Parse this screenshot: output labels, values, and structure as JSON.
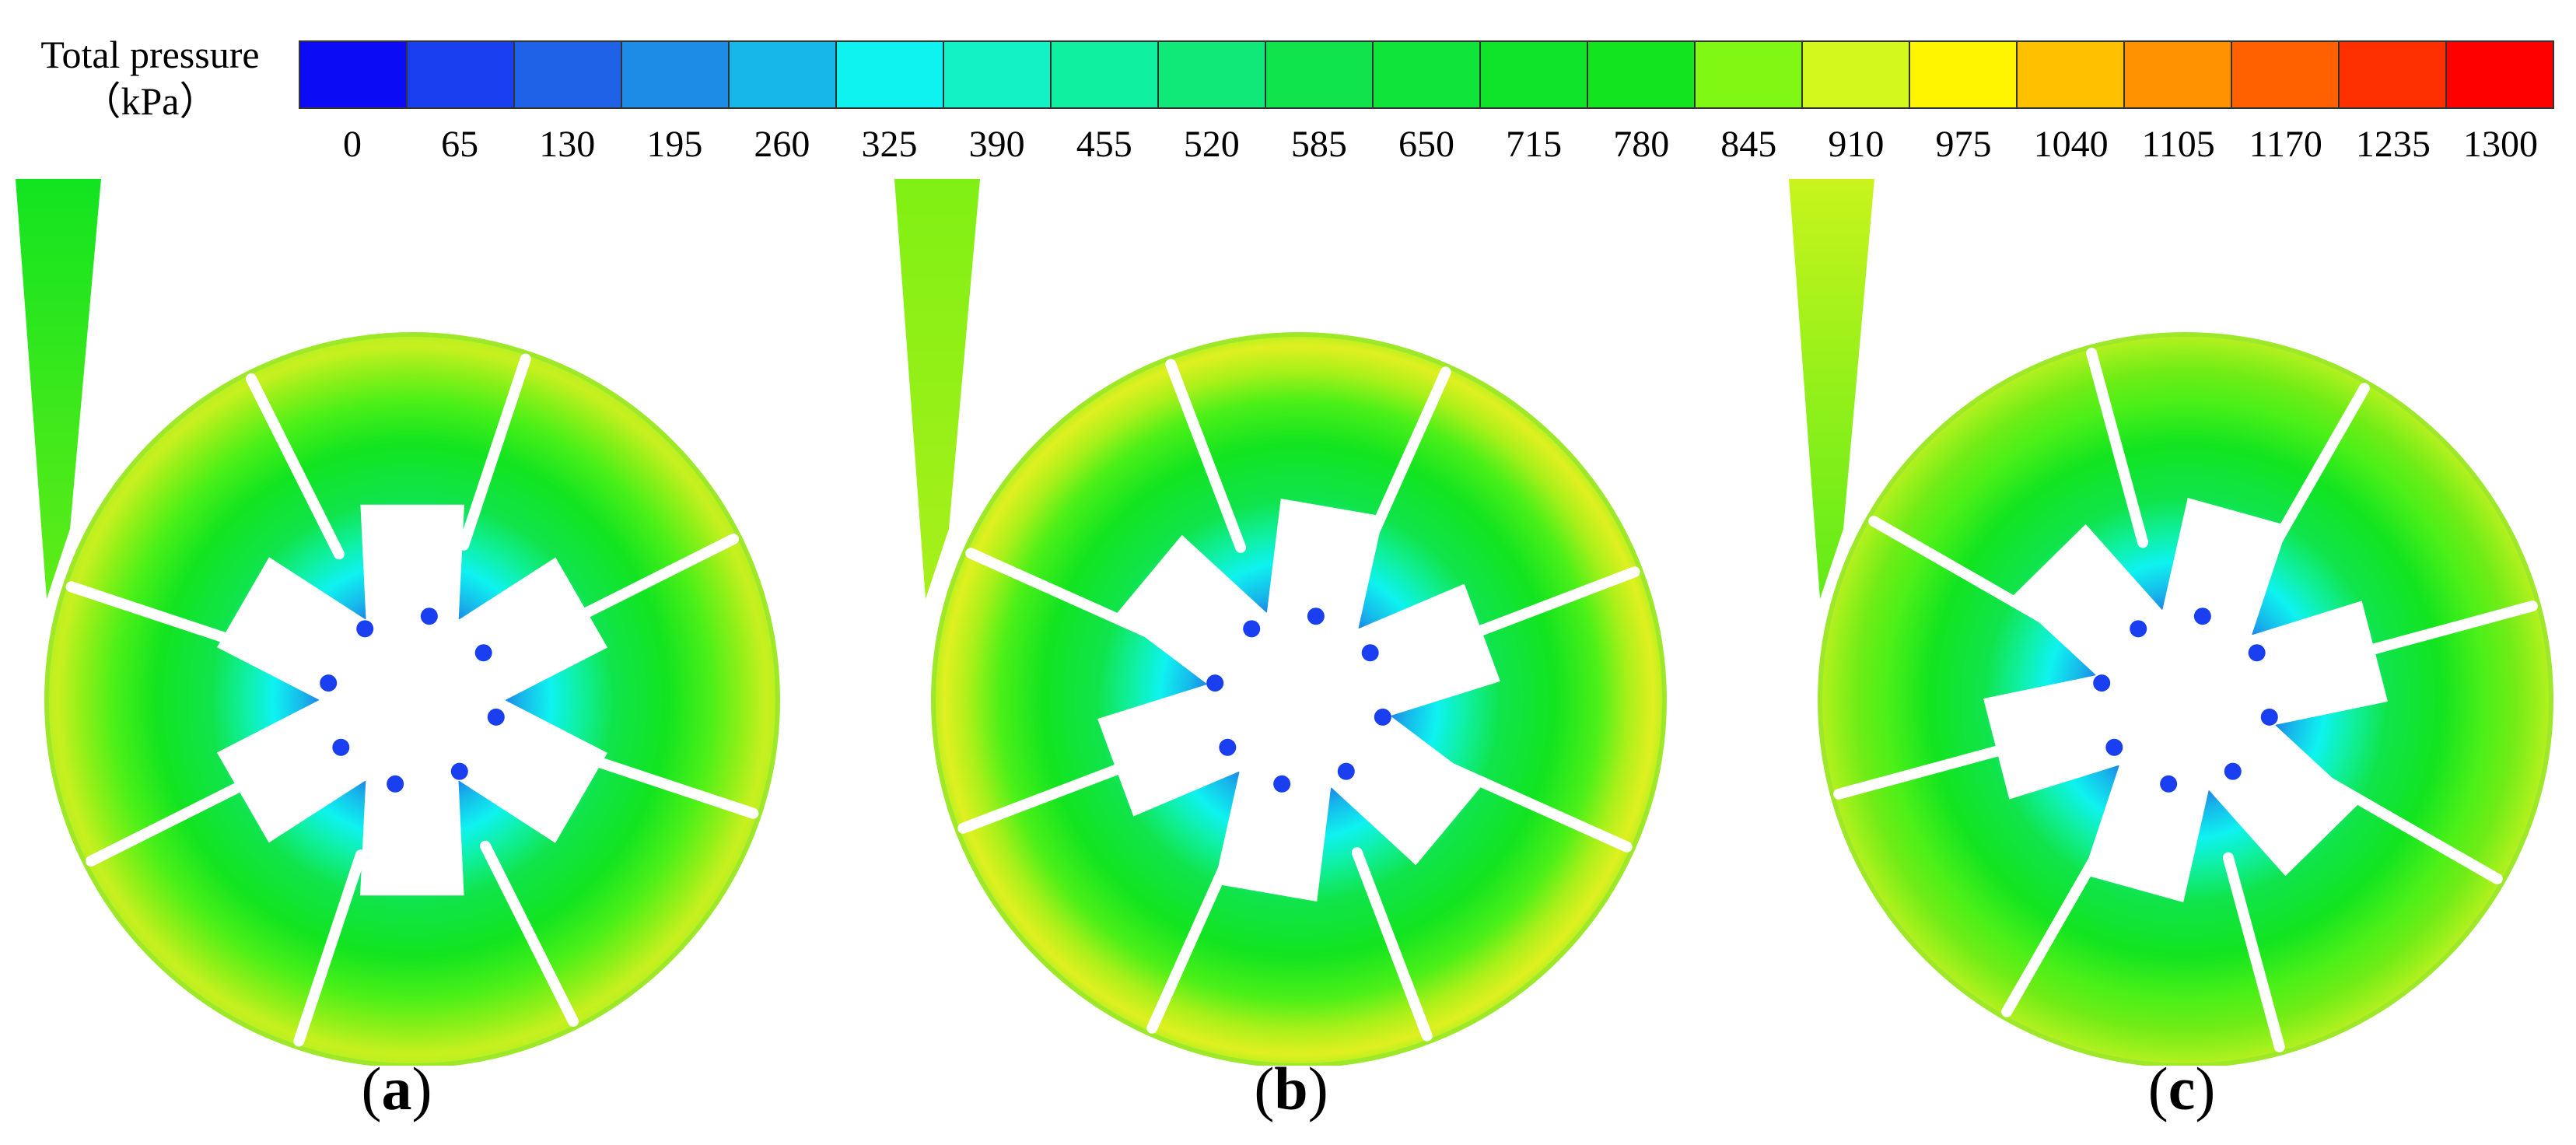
{
  "legend": {
    "title_line1": "Total pressure",
    "title_line2": "（kPa）",
    "ticks": [
      "0",
      "65",
      "130",
      "195",
      "260",
      "325",
      "390",
      "455",
      "520",
      "585",
      "650",
      "715",
      "780",
      "845",
      "910",
      "975",
      "1040",
      "1105",
      "1170",
      "1235",
      "1300"
    ],
    "colors": [
      "#0b0bf5",
      "#1a3ff0",
      "#1f62e8",
      "#1d8ce6",
      "#17b7ea",
      "#0ef2f0",
      "#12f2c4",
      "#0ff0a0",
      "#10e878",
      "#10e44c",
      "#0fe43a",
      "#10e42a",
      "#12e420",
      "#80f814",
      "#d2f81c",
      "#fff500",
      "#ffc000",
      "#ff9200",
      "#ff6000",
      "#ff3000",
      "#ff0000"
    ]
  },
  "panels": [
    {
      "label_open": "(",
      "label_letter": "a",
      "label_close": ")"
    },
    {
      "label_open": "(",
      "label_letter": "b",
      "label_close": ")"
    },
    {
      "label_open": "(",
      "label_letter": "c",
      "label_close": ")"
    }
  ]
}
